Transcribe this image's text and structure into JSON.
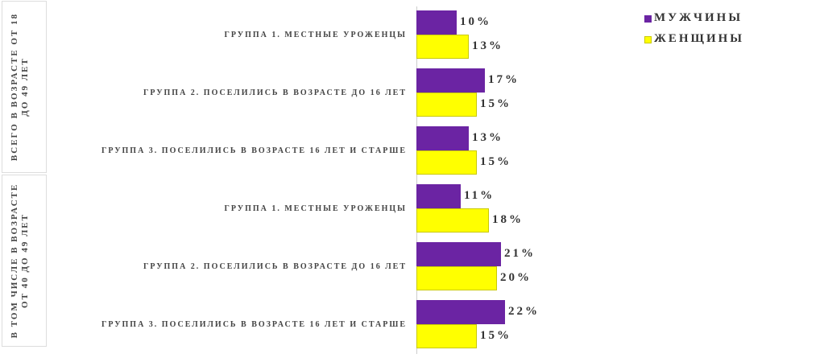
{
  "chart_data": {
    "type": "bar",
    "orientation": "horizontal",
    "groups": [
      "ВСЕГО В ВОЗРАСТЕ ОТ 18 ДО 49 ЛЕТ",
      "В ТОМ ЧИСЛЕ В ВОЗРАСТЕ ОТ 40 ДО 49 ЛЕТ"
    ],
    "categories": [
      "ГРУППА 1. МЕСТНЫЕ УРОЖЕНЦЫ",
      "ГРУППА 2. ПОСЕЛИЛИСЬ В ВОЗРАСТЕ ДО 16 ЛЕТ",
      "ГРУППА 3. ПОСЕЛИЛИСЬ В ВОЗРАСТЕ 16 ЛЕТ И СТАРШЕ",
      "ГРУППА 1. МЕСТНЫЕ УРОЖЕНЦЫ",
      "ГРУППА 2. ПОСЕЛИЛИСЬ В ВОЗРАСТЕ ДО 16 ЛЕТ",
      "ГРУППА 3. ПОСЕЛИЛИСЬ В ВОЗРАСТЕ 16 ЛЕТ И СТАРШЕ"
    ],
    "series": [
      {
        "name": "МУЖЧИНЫ",
        "color": "#6b24a3",
        "values": [
          10,
          17,
          13,
          11,
          21,
          22
        ],
        "value_labels": [
          "10%",
          "17%",
          "13%",
          "11%",
          "21%",
          "22%"
        ]
      },
      {
        "name": "ЖЕНЩИНЫ",
        "color": "#ffff00",
        "values": [
          13,
          15,
          15,
          18,
          20,
          15
        ],
        "value_labels": [
          "13%",
          "15%",
          "15%",
          "18%",
          "20%",
          "15%"
        ]
      }
    ],
    "legend": "top-right"
  }
}
